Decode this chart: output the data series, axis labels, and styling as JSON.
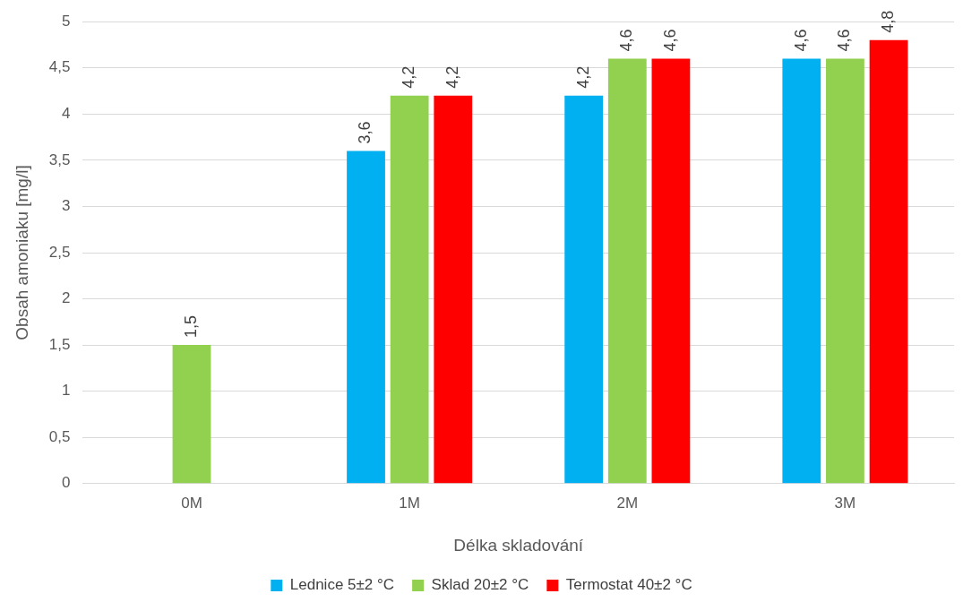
{
  "chart_data": {
    "type": "bar",
    "xlabel": "Délka skladování",
    "ylabel": "Obsah amoniaku [mg/l]",
    "categories": [
      "0M",
      "1M",
      "2M",
      "3M"
    ],
    "series": [
      {
        "name": "Lednice 5±2 °C",
        "color": "#00b0f0",
        "values": [
          null,
          3.6,
          4.2,
          4.6
        ],
        "value_labels": [
          null,
          "3,6",
          "4,2",
          "4,6"
        ]
      },
      {
        "name": "Sklad 20±2 °C",
        "color": "#92d050",
        "values": [
          1.5,
          4.2,
          4.6,
          4.6
        ],
        "value_labels": [
          "1,5",
          "4,2",
          "4,6",
          "4,6"
        ]
      },
      {
        "name": "Termostat 40±2 °C",
        "color": "#ff0000",
        "values": [
          null,
          4.2,
          4.6,
          4.8
        ],
        "value_labels": [
          null,
          "4,2",
          "4,6",
          "4,8"
        ]
      }
    ],
    "ylim": [
      0,
      5
    ],
    "yticks": [
      0,
      {
        "value": 0.5,
        "label": "0,5"
      },
      1,
      {
        "value": 1.5,
        "label": "1,5"
      },
      2,
      {
        "value": 2.5,
        "label": "2,5"
      },
      3,
      {
        "value": 3.5,
        "label": "3,5"
      },
      4,
      {
        "value": 4.5,
        "label": "4,5"
      },
      5
    ],
    "grid": "y",
    "legend": "bottom"
  }
}
